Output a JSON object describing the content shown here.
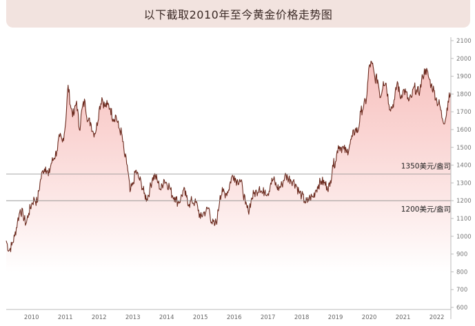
{
  "title": "以下截取2010年至今黄金价格走势图",
  "chart_data": {
    "type": "area",
    "title": "以下截取2010年至今黄金价格走势图",
    "xlabel": "",
    "ylabel": "",
    "x_ticks": [
      "2010",
      "2011",
      "2012",
      "2013",
      "2014",
      "2015",
      "2016",
      "2017",
      "2018",
      "2019",
      "2020",
      "2021",
      "2022"
    ],
    "y_ticks": [
      600,
      700,
      800,
      900,
      1000,
      1100,
      1200,
      1300,
      1400,
      1500,
      1600,
      1700,
      1800,
      1900,
      2000,
      2100
    ],
    "ylim": [
      600,
      2100
    ],
    "xlim": [
      "2009-10",
      "2022-12"
    ],
    "grid": false,
    "colors": {
      "line": "#6b2a1e",
      "fill_top": "#f6b7b4",
      "fill_bottom": "#ffffff",
      "reference_line": "#8c8c8c"
    },
    "reference_lines": [
      {
        "value": 1350,
        "label": "1350美元/盎司"
      },
      {
        "value": 1200,
        "label": "1200美元/盎司"
      }
    ],
    "series": [
      {
        "x": [
          "2009-10",
          "2009-11",
          "2009-12",
          "2010-01",
          "2010-02",
          "2010-03",
          "2010-04",
          "2010-05",
          "2010-06",
          "2010-07",
          "2010-08",
          "2010-09",
          "2010-10",
          "2010-11",
          "2010-12",
          "2011-01",
          "2011-02",
          "2011-03",
          "2011-04",
          "2011-05",
          "2011-06",
          "2011-07",
          "2011-08",
          "2011-09",
          "2011-10",
          "2011-11",
          "2011-12",
          "2012-01",
          "2012-02",
          "2012-03",
          "2012-04",
          "2012-05",
          "2012-06",
          "2012-07",
          "2012-08",
          "2012-09",
          "2012-10",
          "2012-11",
          "2012-12",
          "2013-01",
          "2013-02",
          "2013-03",
          "2013-04",
          "2013-05",
          "2013-06",
          "2013-07",
          "2013-08",
          "2013-09",
          "2013-10",
          "2013-11",
          "2013-12",
          "2014-01",
          "2014-02",
          "2014-03",
          "2014-04",
          "2014-05",
          "2014-06",
          "2014-07",
          "2014-08",
          "2014-09",
          "2014-10",
          "2014-11",
          "2014-12",
          "2015-01",
          "2015-02",
          "2015-03",
          "2015-04",
          "2015-05",
          "2015-06",
          "2015-07",
          "2015-08",
          "2015-09",
          "2015-10",
          "2015-11",
          "2015-12",
          "2016-01",
          "2016-02",
          "2016-03",
          "2016-04",
          "2016-05",
          "2016-06",
          "2016-07",
          "2016-08",
          "2016-09",
          "2016-10",
          "2016-11",
          "2016-12",
          "2017-01",
          "2017-02",
          "2017-03",
          "2017-04",
          "2017-05",
          "2017-06",
          "2017-07",
          "2017-08",
          "2017-09",
          "2017-10",
          "2017-11",
          "2017-12",
          "2018-01",
          "2018-02",
          "2018-03",
          "2018-04",
          "2018-05",
          "2018-06",
          "2018-07",
          "2018-08",
          "2018-09",
          "2018-10",
          "2018-11",
          "2018-12",
          "2019-01",
          "2019-02",
          "2019-03",
          "2019-04",
          "2019-05",
          "2019-06",
          "2019-07",
          "2019-08",
          "2019-09",
          "2019-10",
          "2019-11",
          "2019-12",
          "2020-01",
          "2020-02",
          "2020-03",
          "2020-04",
          "2020-05",
          "2020-06",
          "2020-07",
          "2020-08",
          "2020-09",
          "2020-10",
          "2020-11",
          "2020-12",
          "2021-01",
          "2021-02",
          "2021-03",
          "2021-04",
          "2021-05",
          "2021-06",
          "2021-07",
          "2021-08",
          "2021-09",
          "2021-10",
          "2021-11",
          "2021-12",
          "2022-01",
          "2022-02",
          "2022-03",
          "2022-04",
          "2022-05",
          "2022-06",
          "2022-07",
          "2022-08",
          "2022-09",
          "2022-10",
          "2022-11",
          "2022-12"
        ],
        "values": [
          975,
          920,
          950,
          1000,
          1080,
          1150,
          1120,
          1070,
          1130,
          1180,
          1210,
          1190,
          1300,
          1370,
          1390,
          1340,
          1410,
          1440,
          1480,
          1560,
          1530,
          1620,
          1850,
          1720,
          1680,
          1760,
          1600,
          1720,
          1760,
          1650,
          1640,
          1580,
          1600,
          1710,
          1780,
          1730,
          1740,
          1720,
          1660,
          1680,
          1610,
          1580,
          1460,
          1400,
          1250,
          1290,
          1370,
          1330,
          1300,
          1240,
          1210,
          1260,
          1330,
          1340,
          1300,
          1260,
          1320,
          1300,
          1280,
          1230,
          1220,
          1190,
          1210,
          1260,
          1220,
          1180,
          1200,
          1190,
          1170,
          1100,
          1130,
          1140,
          1160,
          1080,
          1060,
          1100,
          1230,
          1250,
          1240,
          1260,
          1330,
          1340,
          1310,
          1320,
          1270,
          1180,
          1140,
          1200,
          1240,
          1250,
          1280,
          1240,
          1260,
          1240,
          1300,
          1320,
          1280,
          1270,
          1290,
          1340,
          1330,
          1320,
          1310,
          1290,
          1250,
          1230,
          1200,
          1190,
          1220,
          1220,
          1260,
          1290,
          1310,
          1300,
          1280,
          1280,
          1400,
          1420,
          1510,
          1500,
          1490,
          1470,
          1510,
          1560,
          1600,
          1590,
          1700,
          1730,
          1770,
          1960,
          1970,
          1890,
          1880,
          1780,
          1870,
          1860,
          1740,
          1720,
          1770,
          1870,
          1780,
          1820,
          1810,
          1760,
          1780,
          1840,
          1810,
          1820,
          1900,
          1940,
          1900,
          1850,
          1820,
          1760,
          1740,
          1660,
          1650,
          1760,
          1810
        ]
      }
    ]
  }
}
